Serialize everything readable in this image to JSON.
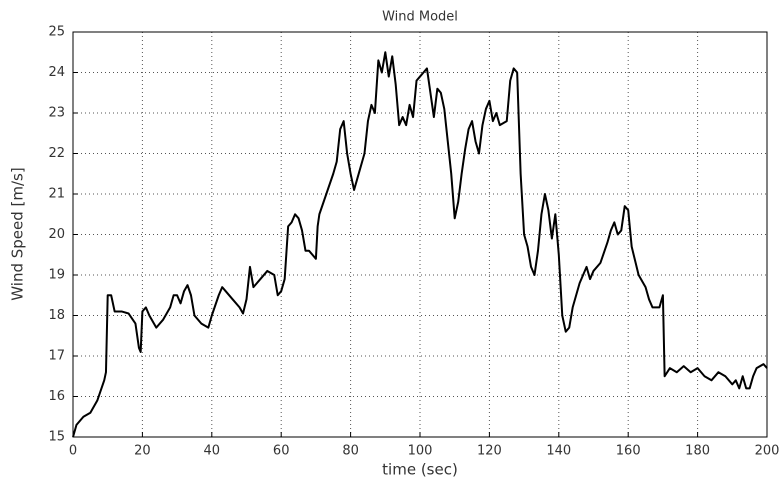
{
  "chart_data": {
    "type": "line",
    "title": "Wind Model",
    "x_label": "time (sec)",
    "y_label": "Wind Speed [m/s]",
    "x": [
      0,
      1,
      3,
      5,
      7,
      9,
      9.5,
      10,
      11,
      12,
      14,
      16,
      18,
      19,
      19.5,
      20,
      21,
      22,
      24,
      26,
      28,
      29,
      30,
      31,
      32,
      33,
      34,
      35,
      37,
      39,
      40,
      42,
      43,
      44,
      46,
      48,
      49,
      50,
      51,
      52,
      53,
      54,
      56,
      58,
      59,
      60,
      61,
      62,
      63,
      64,
      65,
      66,
      67,
      68,
      69,
      70,
      70.5,
      71,
      73,
      75,
      76,
      77,
      78,
      79,
      80,
      81,
      82,
      84,
      85,
      86,
      87,
      88,
      89,
      90,
      91,
      92,
      93,
      94,
      95,
      96,
      97,
      98,
      99,
      100,
      101,
      102,
      103,
      104,
      105,
      106,
      107,
      108,
      109,
      110,
      111,
      112,
      113,
      114,
      115,
      116,
      117,
      118,
      119,
      120,
      121,
      122,
      123,
      125,
      126,
      127,
      128,
      129,
      130,
      131,
      132,
      133,
      134,
      135,
      136,
      137,
      138,
      139,
      140,
      141,
      142,
      143,
      144,
      146,
      147,
      148,
      149,
      150,
      152,
      154,
      155,
      156,
      157,
      158,
      159,
      160,
      161,
      163,
      165,
      166,
      167,
      169,
      170,
      170.5,
      172,
      174,
      176,
      178,
      180,
      182,
      184,
      186,
      188,
      190,
      191,
      192,
      193,
      194,
      195,
      196,
      197,
      199,
      200
    ],
    "series": [
      {
        "name": "wind",
        "color": "#000000",
        "values": [
          15.0,
          15.3,
          15.5,
          15.6,
          15.9,
          16.4,
          16.6,
          18.5,
          18.5,
          18.1,
          18.1,
          18.05,
          17.8,
          17.2,
          17.1,
          18.1,
          18.2,
          18.0,
          17.7,
          17.9,
          18.2,
          18.5,
          18.5,
          18.3,
          18.6,
          18.75,
          18.5,
          18.0,
          17.8,
          17.7,
          18.0,
          18.5,
          18.7,
          18.6,
          18.4,
          18.2,
          18.05,
          18.4,
          19.2,
          18.7,
          18.8,
          18.9,
          19.1,
          19.0,
          18.5,
          18.6,
          18.9,
          20.2,
          20.3,
          20.5,
          20.4,
          20.1,
          19.6,
          19.6,
          19.5,
          19.4,
          20.2,
          20.5,
          21.0,
          21.5,
          21.8,
          22.6,
          22.8,
          22.0,
          21.5,
          21.1,
          21.4,
          22.0,
          22.8,
          23.2,
          23.0,
          24.3,
          24.0,
          24.5,
          23.9,
          24.4,
          23.7,
          22.7,
          22.9,
          22.7,
          23.2,
          22.9,
          23.8,
          23.9,
          24.0,
          24.1,
          23.5,
          22.9,
          23.6,
          23.5,
          23.1,
          22.3,
          21.5,
          20.4,
          20.8,
          21.5,
          22.1,
          22.6,
          22.8,
          22.3,
          22.0,
          22.7,
          23.1,
          23.3,
          22.8,
          23.0,
          22.7,
          22.8,
          23.8,
          24.1,
          24.0,
          21.5,
          20.0,
          19.7,
          19.2,
          19.0,
          19.6,
          20.5,
          21.0,
          20.6,
          19.9,
          20.5,
          19.5,
          18.0,
          17.6,
          17.7,
          18.2,
          18.8,
          19.0,
          19.2,
          18.9,
          19.1,
          19.3,
          19.8,
          20.1,
          20.3,
          20.0,
          20.1,
          20.7,
          20.6,
          19.7,
          19.0,
          18.7,
          18.4,
          18.2,
          18.2,
          18.5,
          16.5,
          16.7,
          16.6,
          16.75,
          16.6,
          16.7,
          16.5,
          16.4,
          16.6,
          16.5,
          16.3,
          16.4,
          16.2,
          16.5,
          16.2,
          16.2,
          16.5,
          16.7,
          16.8,
          16.7
        ]
      }
    ],
    "xlim": [
      0,
      200
    ],
    "xticks": [
      0,
      20,
      40,
      60,
      80,
      100,
      120,
      140,
      160,
      180,
      200
    ],
    "ylim": [
      15,
      25
    ],
    "yticks": [
      15,
      16,
      17,
      18,
      19,
      20,
      21,
      22,
      23,
      24,
      25
    ],
    "grid": true
  }
}
